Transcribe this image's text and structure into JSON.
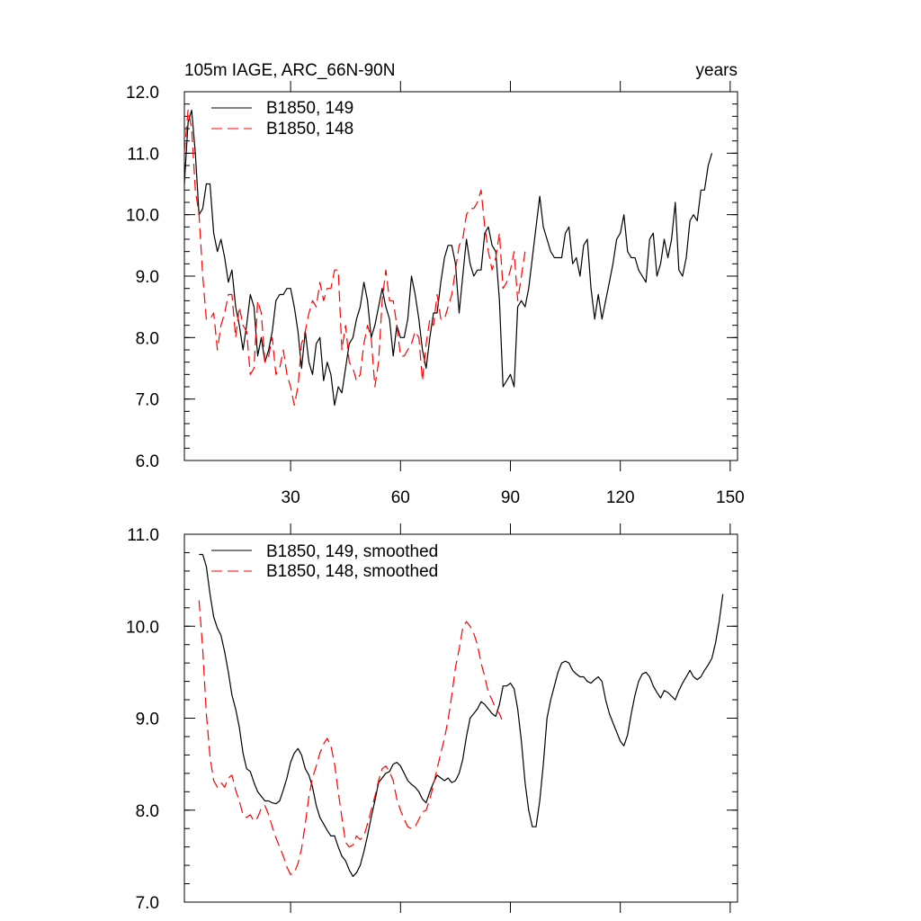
{
  "chart_data": [
    {
      "type": "line",
      "title_left": "105m IAGE, ARC_66N-90N",
      "title_right": "years",
      "xlim": [
        1,
        152
      ],
      "ylim": [
        6.0,
        12.0
      ],
      "x_ticks": [
        30,
        60,
        90,
        120,
        150
      ],
      "x_tick_labels": [
        "30",
        "60",
        "90",
        "120",
        "150"
      ],
      "y_ticks": [
        6.0,
        7.0,
        8.0,
        9.0,
        10.0,
        11.0,
        12.0
      ],
      "y_tick_labels": [
        "6.0",
        "7.0",
        "8.0",
        "9.0",
        "10.0",
        "11.0",
        "12.0"
      ],
      "legend_position": "top-left",
      "series": [
        {
          "name": "B1850, 149",
          "color": "#000000",
          "dash": "solid",
          "x_start": 1,
          "values": [
            10.5,
            11.5,
            11.7,
            11.0,
            10.0,
            10.1,
            10.5,
            10.5,
            9.7,
            9.4,
            9.6,
            9.3,
            8.9,
            9.1,
            8.5,
            8.2,
            7.8,
            8.2,
            8.7,
            8.5,
            7.7,
            8.0,
            7.6,
            7.8,
            8.1,
            8.6,
            8.7,
            8.7,
            8.8,
            8.8,
            8.5,
            8.1,
            7.5,
            8.1,
            7.6,
            7.4,
            7.9,
            8.0,
            7.3,
            7.6,
            7.4,
            6.9,
            7.2,
            7.1,
            7.5,
            7.9,
            8.0,
            8.3,
            8.5,
            8.9,
            8.6,
            8.0,
            8.2,
            8.5,
            8.8,
            8.5,
            8.3,
            7.7,
            8.2,
            8.0,
            8.0,
            8.3,
            9.0,
            8.7,
            8.3,
            7.8,
            7.5,
            8.0,
            8.4,
            8.4,
            8.9,
            9.3,
            9.5,
            9.5,
            9.2,
            8.4,
            9.0,
            9.6,
            9.2,
            9.0,
            9.1,
            9.1,
            9.7,
            9.8,
            9.5,
            9.4,
            8.6,
            7.2,
            7.3,
            7.4,
            7.2,
            8.5,
            8.6,
            8.5,
            8.8,
            9.3,
            9.8,
            10.3,
            9.8,
            9.6,
            9.4,
            9.3,
            9.3,
            9.3,
            9.7,
            9.8,
            9.2,
            9.3,
            9.0,
            9.5,
            9.6,
            8.8,
            8.3,
            8.7,
            8.3,
            8.6,
            8.9,
            9.2,
            9.6,
            9.7,
            10.0,
            9.4,
            9.3,
            9.3,
            9.1,
            9.0,
            8.9,
            9.6,
            9.7,
            9.0,
            9.2,
            9.6,
            9.3,
            9.6,
            10.2,
            9.1,
            9.0,
            9.3,
            9.9,
            10.0,
            9.9,
            10.4,
            10.4,
            10.8,
            11.0
          ]
        },
        {
          "name": "B1850, 148",
          "color": "#ff0000",
          "dash": "dashed",
          "x_start": 1,
          "values": [
            11.0,
            11.7,
            11.4,
            10.4,
            10.0,
            9.0,
            8.3,
            8.3,
            8.4,
            7.8,
            8.2,
            8.4,
            8.7,
            8.7,
            8.0,
            8.5,
            8.2,
            8.1,
            7.4,
            7.5,
            8.6,
            8.4,
            7.6,
            7.7,
            8.0,
            7.4,
            7.5,
            7.8,
            7.4,
            7.2,
            6.9,
            7.2,
            7.9,
            8.1,
            8.4,
            8.6,
            8.5,
            8.9,
            8.6,
            8.8,
            8.8,
            9.1,
            9.1,
            7.8,
            8.2,
            7.6,
            7.5,
            7.3,
            7.4,
            7.9,
            8.2,
            8.0,
            7.2,
            7.6,
            8.6,
            9.1,
            8.6,
            8.6,
            8.2,
            7.7,
            7.7,
            7.8,
            7.9,
            8.1,
            8.0,
            7.3,
            7.9,
            8.3,
            8.2,
            8.7,
            8.3,
            8.3,
            8.5,
            8.7,
            9.1,
            9.5,
            9.6,
            10.0,
            10.1,
            10.1,
            10.2,
            10.4,
            9.8,
            9.4,
            9.1,
            9.3,
            9.7,
            8.8,
            8.9,
            9.1,
            9.4,
            8.6,
            9.0,
            9.4
          ]
        }
      ]
    },
    {
      "type": "line",
      "xlim": [
        1,
        152
      ],
      "ylim": [
        7.0,
        11.0
      ],
      "x_ticks": [
        30,
        60,
        90,
        120,
        150
      ],
      "y_ticks": [
        7.0,
        8.0,
        9.0,
        10.0,
        11.0
      ],
      "y_tick_labels": [
        "7.0",
        "8.0",
        "9.0",
        "10.0",
        "11.0"
      ],
      "legend_position": "top-left",
      "series": [
        {
          "name": "B1850, 149, smoothed",
          "color": "#000000",
          "dash": "solid",
          "x_start": 5,
          "values": [
            10.78,
            10.78,
            10.65,
            10.35,
            10.1,
            9.98,
            9.9,
            9.72,
            9.5,
            9.25,
            9.1,
            8.9,
            8.62,
            8.45,
            8.42,
            8.3,
            8.2,
            8.15,
            8.1,
            8.1,
            8.08,
            8.07,
            8.1,
            8.22,
            8.35,
            8.52,
            8.62,
            8.67,
            8.6,
            8.45,
            8.38,
            8.25,
            8.05,
            7.92,
            7.85,
            7.78,
            7.72,
            7.72,
            7.6,
            7.5,
            7.45,
            7.35,
            7.28,
            7.32,
            7.4,
            7.55,
            7.72,
            7.92,
            8.1,
            8.3,
            8.35,
            8.4,
            8.42,
            8.5,
            8.52,
            8.48,
            8.4,
            8.32,
            8.28,
            8.25,
            8.2,
            8.12,
            8.08,
            8.2,
            8.3,
            8.38,
            8.35,
            8.32,
            8.35,
            8.3,
            8.32,
            8.4,
            8.55,
            8.8,
            9.0,
            9.05,
            9.1,
            9.18,
            9.15,
            9.1,
            9.05,
            9.02,
            9.15,
            9.35,
            9.35,
            9.38,
            9.32,
            9.1,
            8.75,
            8.3,
            8.0,
            7.82,
            7.82,
            8.1,
            8.5,
            9.0,
            9.2,
            9.35,
            9.5,
            9.6,
            9.62,
            9.6,
            9.52,
            9.48,
            9.45,
            9.45,
            9.4,
            9.38,
            9.42,
            9.45,
            9.4,
            9.2,
            9.05,
            8.95,
            8.85,
            8.75,
            8.7,
            8.82,
            9.05,
            9.25,
            9.4,
            9.48,
            9.5,
            9.45,
            9.35,
            9.28,
            9.22,
            9.3,
            9.28,
            9.24,
            9.2,
            9.3,
            9.38,
            9.45,
            9.52,
            9.45,
            9.42,
            9.45,
            9.52,
            9.58,
            9.65,
            9.82,
            10.05,
            10.35
          ]
        },
        {
          "name": "B1850, 148, smoothed",
          "color": "#ff0000",
          "dash": "dashed",
          "x_start": 5,
          "values": [
            10.28,
            9.75,
            9.05,
            8.58,
            8.32,
            8.25,
            8.3,
            8.25,
            8.35,
            8.38,
            8.22,
            8.1,
            7.95,
            7.92,
            7.95,
            7.88,
            7.92,
            8.02,
            8.05,
            7.95,
            7.82,
            7.7,
            7.6,
            7.5,
            7.38,
            7.3,
            7.32,
            7.42,
            7.58,
            7.85,
            8.15,
            8.35,
            8.48,
            8.62,
            8.72,
            8.78,
            8.7,
            8.5,
            8.2,
            7.92,
            7.65,
            7.6,
            7.62,
            7.72,
            7.68,
            7.72,
            7.85,
            8.0,
            8.15,
            8.32,
            8.45,
            8.48,
            8.42,
            8.32,
            8.12,
            8.0,
            7.9,
            7.82,
            7.8,
            7.82,
            7.9,
            7.98,
            8.0,
            8.12,
            8.28,
            8.45,
            8.62,
            8.78,
            8.98,
            9.25,
            9.55,
            9.75,
            9.98,
            10.05,
            10.0,
            9.92,
            9.8,
            9.6,
            9.45,
            9.28,
            9.2,
            9.1,
            9.05,
            8.95
          ]
        }
      ]
    }
  ]
}
